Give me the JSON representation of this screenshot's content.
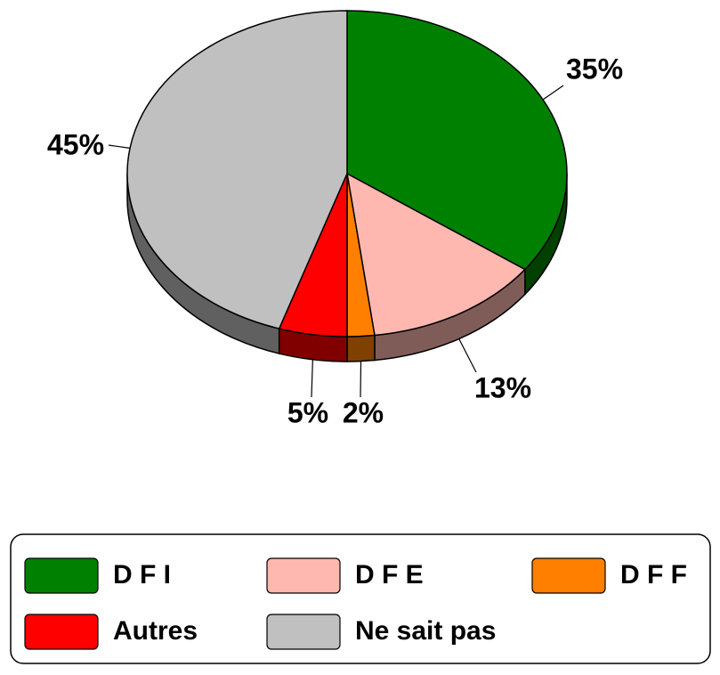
{
  "chart_data": {
    "type": "pie",
    "categories": [
      "D F I",
      "D F E",
      "D F F",
      "Autres",
      "Ne sait pas"
    ],
    "values": [
      35,
      13,
      2,
      5,
      45
    ],
    "value_labels": [
      "35%",
      "13%",
      "2%",
      "5%",
      "45%"
    ],
    "colors": [
      "#008000",
      "#ffb8b0",
      "#ff8000",
      "#ff0000",
      "#c0c0c0"
    ],
    "legend": "bottom"
  }
}
